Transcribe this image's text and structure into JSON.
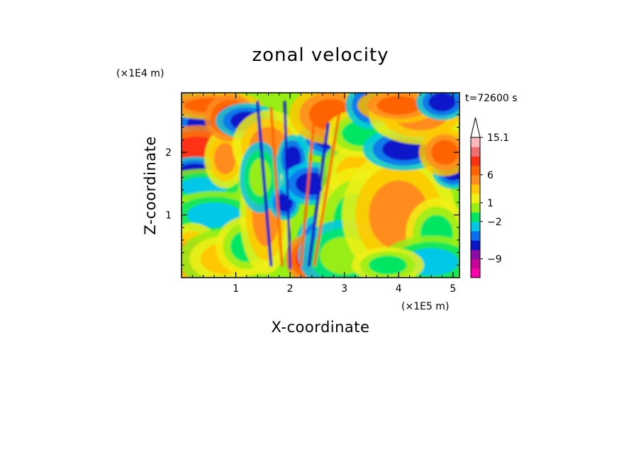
{
  "chart_data": {
    "type": "heatmap",
    "title": "zonal velocity",
    "xlabel": "X-coordinate",
    "ylabel": "Z-coordinate",
    "x_multiplier": "(×1E5 m)",
    "y_multiplier": "(×1E4 m)",
    "time_label": "t=72600 s",
    "xlim": [
      0,
      5.12
    ],
    "ylim": [
      0,
      2.95
    ],
    "x_ticks": [
      {
        "v": 1,
        "label": "1"
      },
      {
        "v": 2,
        "label": "2"
      },
      {
        "v": 3,
        "label": "3"
      },
      {
        "v": 4,
        "label": "4"
      },
      {
        "v": 5,
        "label": "5"
      }
    ],
    "y_ticks": [
      {
        "v": 1,
        "label": "1"
      },
      {
        "v": 2,
        "label": "2"
      }
    ],
    "colorbar": {
      "levels": [
        {
          "color": "#ff00aa"
        },
        {
          "color": "#c8009a"
        },
        {
          "color": "#8c0aa8"
        },
        {
          "color": "#0a14c8"
        },
        {
          "color": "#0a6ef0"
        },
        {
          "color": "#00c8e6"
        },
        {
          "color": "#00e664"
        },
        {
          "color": "#96ee14"
        },
        {
          "color": "#f0f014"
        },
        {
          "color": "#ffc800"
        },
        {
          "color": "#ff8c1e"
        },
        {
          "color": "#ff6400"
        },
        {
          "color": "#ff3214"
        },
        {
          "color": "#f07070"
        },
        {
          "color": "#ffb9be"
        }
      ],
      "labels": [
        {
          "text": "15.1",
          "at_boundary": 15
        },
        {
          "text": "6",
          "at_boundary": 11
        },
        {
          "text": "1",
          "at_boundary": 8
        },
        {
          "text": "−2",
          "at_boundary": 6
        },
        {
          "text": "−9",
          "at_boundary": 2
        }
      ]
    },
    "blobs": [
      {
        "x": 0.1,
        "z": 2.6,
        "rx": 0.25,
        "rz": 0.35,
        "c": 3
      },
      {
        "x": 0.45,
        "z": 2.45,
        "rx": 0.35,
        "rz": 0.18,
        "c": 3
      },
      {
        "x": 0.55,
        "z": 2.75,
        "rx": 0.5,
        "rz": 0.12,
        "c": 11
      },
      {
        "x": 0.3,
        "z": 2.05,
        "rx": 0.45,
        "rz": 0.2,
        "c": 12
      },
      {
        "x": 0.25,
        "z": 1.7,
        "rx": 0.3,
        "rz": 0.12,
        "c": 3
      },
      {
        "x": 0.4,
        "z": 1.45,
        "rx": 0.45,
        "rz": 0.15,
        "c": 5
      },
      {
        "x": 0.8,
        "z": 1.9,
        "rx": 0.2,
        "rz": 0.25,
        "c": 10
      },
      {
        "x": 0.9,
        "z": 2.55,
        "rx": 0.25,
        "rz": 0.2,
        "c": 12
      },
      {
        "x": 1.2,
        "z": 2.5,
        "rx": 0.3,
        "rz": 0.15,
        "c": 3
      },
      {
        "x": 0.5,
        "z": 0.85,
        "rx": 0.3,
        "rz": 0.1,
        "c": 3
      },
      {
        "x": 0.6,
        "z": 1.0,
        "rx": 0.5,
        "rz": 0.2,
        "c": 5
      },
      {
        "x": 0.2,
        "z": 0.3,
        "rx": 0.3,
        "rz": 0.3,
        "c": 10
      },
      {
        "x": 0.8,
        "z": 0.3,
        "rx": 0.45,
        "rz": 0.25,
        "c": 9
      },
      {
        "x": 1.2,
        "z": 0.5,
        "rx": 0.3,
        "rz": 0.25,
        "c": 6
      },
      {
        "x": 1.55,
        "z": 1.0,
        "rx": 0.25,
        "rz": 0.5,
        "c": 10
      },
      {
        "x": 1.6,
        "z": 2.1,
        "rx": 0.35,
        "rz": 0.3,
        "c": 10
      },
      {
        "x": 1.45,
        "z": 1.6,
        "rx": 0.2,
        "rz": 0.3,
        "c": 7
      },
      {
        "x": 1.9,
        "z": 1.2,
        "rx": 0.15,
        "rz": 0.15,
        "c": 3
      },
      {
        "x": 2.05,
        "z": 1.9,
        "rx": 0.15,
        "rz": 0.2,
        "c": 3
      },
      {
        "x": 2.4,
        "z": 1.5,
        "rx": 0.3,
        "rz": 0.18,
        "c": 3
      },
      {
        "x": 2.6,
        "z": 0.6,
        "rx": 0.25,
        "rz": 0.22,
        "c": 3
      },
      {
        "x": 2.3,
        "z": 0.3,
        "rx": 0.2,
        "rz": 0.2,
        "c": 12
      },
      {
        "x": 2.8,
        "z": 2.2,
        "rx": 0.35,
        "rz": 0.15,
        "c": 3
      },
      {
        "x": 2.75,
        "z": 2.6,
        "rx": 0.4,
        "rz": 0.25,
        "c": 11
      },
      {
        "x": 3.2,
        "z": 1.65,
        "rx": 0.35,
        "rz": 0.3,
        "c": 9
      },
      {
        "x": 3.3,
        "z": 2.3,
        "rx": 0.35,
        "rz": 0.2,
        "c": 6
      },
      {
        "x": 3.5,
        "z": 2.75,
        "rx": 0.25,
        "rz": 0.2,
        "c": 3
      },
      {
        "x": 3.2,
        "z": 0.9,
        "rx": 0.4,
        "rz": 0.45,
        "c": 6
      },
      {
        "x": 3.0,
        "z": 0.35,
        "rx": 0.45,
        "rz": 0.3,
        "c": 7
      },
      {
        "x": 4.0,
        "z": 1.0,
        "rx": 0.55,
        "rz": 0.55,
        "c": 10
      },
      {
        "x": 4.1,
        "z": 2.05,
        "rx": 0.4,
        "rz": 0.18,
        "c": 3
      },
      {
        "x": 4.4,
        "z": 2.6,
        "rx": 0.5,
        "rz": 0.25,
        "c": 10
      },
      {
        "x": 4.0,
        "z": 2.75,
        "rx": 0.4,
        "rz": 0.15,
        "c": 11
      },
      {
        "x": 4.8,
        "z": 2.8,
        "rx": 0.25,
        "rz": 0.15,
        "c": 3
      },
      {
        "x": 5.0,
        "z": 1.7,
        "rx": 0.2,
        "rz": 0.15,
        "c": 3
      },
      {
        "x": 4.85,
        "z": 2.0,
        "rx": 0.25,
        "rz": 0.2,
        "c": 11
      },
      {
        "x": 4.7,
        "z": 0.7,
        "rx": 0.3,
        "rz": 0.3,
        "c": 6
      },
      {
        "x": 4.6,
        "z": 0.25,
        "rx": 0.5,
        "rz": 0.22,
        "c": 5
      },
      {
        "x": 3.8,
        "z": 0.2,
        "rx": 0.35,
        "rz": 0.15,
        "c": 6
      }
    ],
    "streaks": [
      {
        "x1": 1.65,
        "z1": 0.2,
        "x2": 1.4,
        "z2": 2.8,
        "w": 0.06,
        "c": 3
      },
      {
        "x1": 1.85,
        "z1": 0.2,
        "x2": 1.65,
        "z2": 2.7,
        "w": 0.05,
        "c": 11
      },
      {
        "x1": 2.0,
        "z1": 0.15,
        "x2": 1.9,
        "z2": 2.8,
        "w": 0.05,
        "c": 3
      },
      {
        "x1": 2.2,
        "z1": 0.2,
        "x2": 2.45,
        "z2": 2.6,
        "w": 0.05,
        "c": 11
      },
      {
        "x1": 2.35,
        "z1": 0.2,
        "x2": 2.7,
        "z2": 2.45,
        "w": 0.06,
        "c": 3
      },
      {
        "x1": 2.45,
        "z1": 0.2,
        "x2": 2.9,
        "z2": 2.6,
        "w": 0.05,
        "c": 11
      }
    ]
  }
}
